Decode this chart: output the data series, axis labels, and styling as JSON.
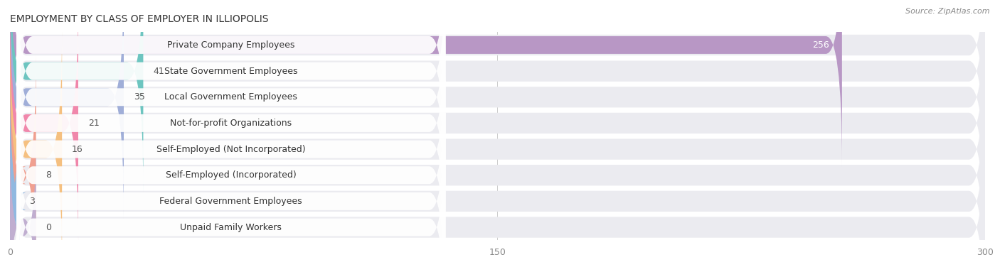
{
  "title": "EMPLOYMENT BY CLASS OF EMPLOYER IN ILLIOPOLIS",
  "source": "Source: ZipAtlas.com",
  "categories": [
    "Private Company Employees",
    "State Government Employees",
    "Local Government Employees",
    "Not-for-profit Organizations",
    "Self-Employed (Not Incorporated)",
    "Self-Employed (Incorporated)",
    "Federal Government Employees",
    "Unpaid Family Workers"
  ],
  "values": [
    256,
    41,
    35,
    21,
    16,
    8,
    3,
    0
  ],
  "bar_colors": [
    "#b897c5",
    "#6dc5c0",
    "#a0aed8",
    "#f087ab",
    "#f5c080",
    "#f0a090",
    "#90b8e0",
    "#c0aed0"
  ],
  "xlim": [
    0,
    300
  ],
  "xticks": [
    0,
    150,
    300
  ],
  "bar_bg_color": "#ebebf0",
  "label_bg_color": "#ffffff",
  "title_fontsize": 10,
  "label_fontsize": 9,
  "value_fontsize": 9,
  "source_fontsize": 8
}
